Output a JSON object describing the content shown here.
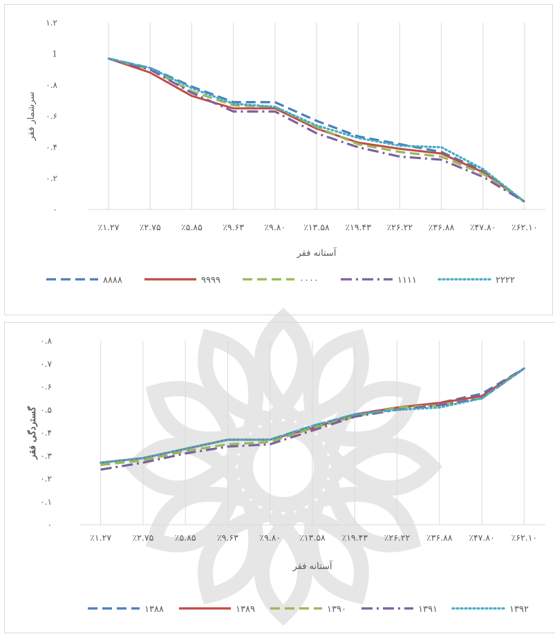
{
  "colors": {
    "s1": "#4a7ebb",
    "s2": "#be4b48",
    "s3": "#98b954",
    "s4": "#7d5fa0",
    "s5": "#46aac5",
    "grid": "#d9d9d9",
    "text": "#595959",
    "watermark": "#e4e4e4"
  },
  "chart_data": [
    {
      "type": "line",
      "title": "",
      "xlabel": "آستانه فقر",
      "ylabel": "سرشمار فقر",
      "categories": [
        "٪۱.۲۷",
        "٪۲.۷۵",
        "٪۵.۸۵",
        "٪۹.۶۳",
        "٪۹.۸۰",
        "٪۱۳.۵۸",
        "٪۱۹.۴۳",
        "٪۲۶.۲۲",
        "٪۳۶.۸۸",
        "٪۴۷.۸۰",
        "٪۶۲.۱۰"
      ],
      "ylim": [
        0,
        1.2
      ],
      "yticks": [
        "۰",
        "۰.۲",
        "۰.۴",
        "۰.۶",
        "۰.۸",
        "1",
        "۱.۲"
      ],
      "ytick_values": [
        0,
        0.2,
        0.4,
        0.6,
        0.8,
        1.0,
        1.2
      ],
      "grid": "vertical",
      "legend_position": "bottom",
      "series": [
        {
          "name": "۸۸۸۸",
          "dash": "dash",
          "values": [
            0.97,
            0.91,
            0.79,
            0.69,
            0.69,
            0.57,
            0.47,
            0.42,
            0.37,
            0.25,
            0.05
          ]
        },
        {
          "name": "۹۹۹۹",
          "dash": "solid",
          "values": [
            0.97,
            0.88,
            0.73,
            0.65,
            0.65,
            0.52,
            0.43,
            0.39,
            0.36,
            0.24,
            0.05
          ]
        },
        {
          "name": "۰۰۰۰",
          "dash": "dash",
          "values": [
            0.97,
            0.9,
            0.76,
            0.67,
            0.66,
            0.53,
            0.42,
            0.37,
            0.34,
            0.23,
            0.05
          ]
        },
        {
          "name": "۱۱۱۱",
          "dash": "dashdot",
          "values": [
            0.97,
            0.9,
            0.75,
            0.63,
            0.63,
            0.49,
            0.4,
            0.34,
            0.32,
            0.21,
            0.05
          ]
        },
        {
          "name": "۲۲۲۲",
          "dash": "dot",
          "values": [
            0.97,
            0.91,
            0.78,
            0.68,
            0.66,
            0.54,
            0.46,
            0.41,
            0.4,
            0.26,
            0.05
          ]
        }
      ]
    },
    {
      "type": "line",
      "title": "",
      "xlabel": "آستانه فقر",
      "ylabel": "گستردگی فقر",
      "categories": [
        "٪۱.۲۷",
        "٪۲.۷۵",
        "٪۵.۸۵",
        "٪۹.۶۳",
        "٪۹.۸۰",
        "٪۱۳.۵۸",
        "٪۱۹.۴۳",
        "٪۲۶.۲۲",
        "٪۳۶.۸۸",
        "٪۴۷.۸۰",
        "٪۶۲.۱۰"
      ],
      "ylim": [
        0,
        0.8
      ],
      "yticks": [
        "۰",
        "۰.۱",
        "۰.۲",
        "۰.۳",
        "۰.۴",
        "۰.۵",
        "۰.۶",
        "۰.۷",
        "۰.۸"
      ],
      "ytick_values": [
        0,
        0.1,
        0.2,
        0.3,
        0.4,
        0.5,
        0.6,
        0.7,
        0.8
      ],
      "grid": "vertical",
      "legend_position": "bottom",
      "series": [
        {
          "name": "۱۳۸۸",
          "dash": "dash",
          "values": [
            0.27,
            0.29,
            0.33,
            0.37,
            0.37,
            0.43,
            0.48,
            0.51,
            0.53,
            0.57,
            0.68
          ]
        },
        {
          "name": "۱۳۸۹",
          "dash": "solid",
          "values": [
            0.27,
            0.29,
            0.33,
            0.37,
            0.37,
            0.42,
            0.48,
            0.51,
            0.53,
            0.56,
            0.68
          ]
        },
        {
          "name": "۱۳۹۰",
          "dash": "dash",
          "values": [
            0.26,
            0.28,
            0.32,
            0.35,
            0.36,
            0.42,
            0.47,
            0.51,
            0.52,
            0.55,
            0.68
          ]
        },
        {
          "name": "۱۳۹۱",
          "dash": "dashdot",
          "values": [
            0.24,
            0.27,
            0.31,
            0.34,
            0.35,
            0.41,
            0.47,
            0.5,
            0.52,
            0.55,
            0.68
          ]
        },
        {
          "name": "۱۳۹۲",
          "dash": "dot",
          "values": [
            0.27,
            0.29,
            0.33,
            0.37,
            0.37,
            0.43,
            0.48,
            0.5,
            0.51,
            0.55,
            0.68
          ]
        }
      ]
    }
  ]
}
